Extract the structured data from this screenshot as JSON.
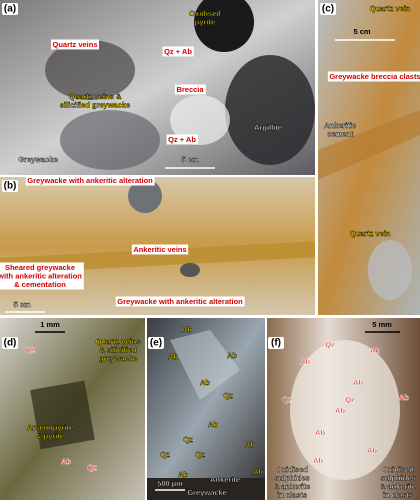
{
  "panels": [
    {
      "letter": "(a)",
      "labels": [
        [
          "Oxidised",
          "pyrite"
        ],
        [
          "Quartz veins"
        ],
        [
          "Qz + Ab"
        ],
        [
          "Breccia"
        ],
        [
          "Quartz veins &",
          "silicified greywacke"
        ],
        [
          "Qz + Ab"
        ],
        [
          "Argillite"
        ],
        [
          "Greywacke"
        ],
        [
          "5 cm"
        ]
      ]
    },
    {
      "letter": "(b)",
      "labels": [
        [
          "Greywacke with ankeritic alteration"
        ],
        [
          "Ankeritic veins"
        ],
        [
          "Sheared greywacke",
          "with ankeritic alteration",
          "& cementation"
        ],
        [
          "5 cm"
        ],
        [
          "Greywacke with ankeritic alteration"
        ]
      ]
    },
    {
      "letter": "(c)",
      "labels": [
        [
          "Quartz vein"
        ],
        [
          "5 cm"
        ],
        [
          "Greywacke breccia clasts"
        ],
        [
          "Ankeritic",
          "cement"
        ],
        [
          "Quartz vein"
        ]
      ]
    },
    {
      "letter": "(d)",
      "labels": [
        [
          "1 mm"
        ],
        [
          "Qz"
        ],
        [
          "Quartz veins",
          "& silicified",
          "greywacke"
        ],
        [
          "Arsenopyrite",
          "& pyrite"
        ],
        [
          "Ab"
        ],
        [
          "Qz"
        ]
      ]
    },
    {
      "letter": "(e)",
      "labels": [
        [
          "Ab"
        ],
        [
          "Ab"
        ],
        [
          "Ab"
        ],
        [
          "Ab"
        ],
        [
          "Qz"
        ],
        [
          "Ab"
        ],
        [
          "Qz"
        ],
        [
          "Qz"
        ],
        [
          "Qz"
        ],
        [
          "Ab"
        ],
        [
          "Ab"
        ],
        [
          "Ab"
        ],
        [
          "Ankerite"
        ],
        [
          "500 µm"
        ],
        [
          "Greywacke"
        ]
      ]
    },
    {
      "letter": "(f)",
      "labels": [
        [
          "5 mm"
        ],
        [
          "Qz"
        ],
        [
          "Ab"
        ],
        [
          "Ab"
        ],
        [
          "Ab"
        ],
        [
          "Qz"
        ],
        [
          "Qz"
        ],
        [
          "Ab"
        ],
        [
          "Ab"
        ],
        [
          "Ab"
        ],
        [
          "Ab"
        ],
        [
          "Ab"
        ],
        [
          "Oxidised",
          "sulphides",
          "& ankerite",
          "in clasts"
        ],
        [
          "Oxidised",
          "sulphides",
          "& ankerite",
          "in clasts"
        ]
      ]
    }
  ]
}
